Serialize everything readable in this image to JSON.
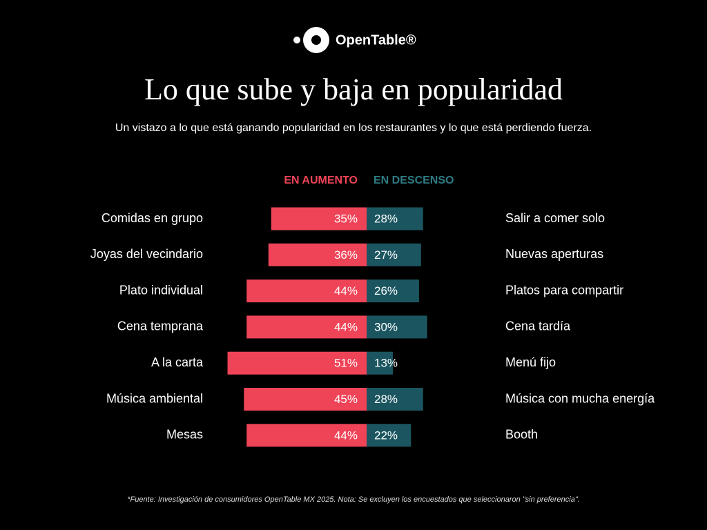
{
  "chart_data": {
    "type": "diverging-bar",
    "brand": "OpenTable®",
    "title": "Lo que sube y baja en popularidad",
    "subtitle": "Un vistazo a lo que está ganando popularidad en los restaurantes y lo que está perdiendo fuerza.",
    "footnote": "*Fuente: Investigación de consumidores OpenTable MX 2025. Nota: Se excluyen los encuestados que seleccionaron \"sin preferencia\".",
    "categories": [
      "Comidas en grupo",
      "Joyas del vecindario",
      "Plato individual",
      "Cena temprana",
      "A la carta",
      "Música ambiental",
      "Mesas"
    ],
    "series": [
      {
        "name": "EN AUMENTO",
        "color": "#ef4458",
        "values": [
          35,
          36,
          44,
          44,
          51,
          45,
          44
        ],
        "value_labels": [
          "35%",
          "36%",
          "44%",
          "44%",
          "51%",
          "45%",
          "44%"
        ]
      },
      {
        "name": "EN DESCENSO",
        "color": "#1b5660",
        "labels": [
          "Salir a comer solo",
          "Nuevas aperturas",
          "Platos para compartir",
          "Cena tardía",
          "Menú fijo",
          "Música con mucha energía",
          "Booth"
        ],
        "values": [
          28,
          27,
          26,
          30,
          13,
          28,
          22
        ],
        "value_labels": [
          "28%",
          "27%",
          "26%",
          "30%",
          "13%",
          "28%",
          "22%"
        ]
      }
    ]
  }
}
